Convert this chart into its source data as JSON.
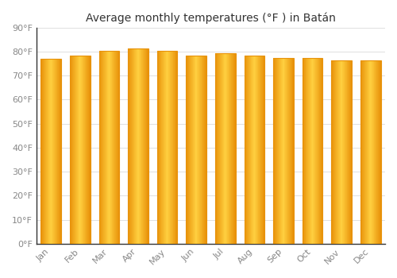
{
  "title": "Average monthly temperatures (°F ) in Batán",
  "categories": [
    "Jan",
    "Feb",
    "Mar",
    "Apr",
    "May",
    "Jun",
    "Jul",
    "Aug",
    "Sep",
    "Oct",
    "Nov",
    "Dec"
  ],
  "values": [
    77.2,
    78.3,
    80.2,
    81.3,
    80.3,
    78.4,
    79.2,
    78.3,
    77.5,
    77.4,
    76.3,
    76.3
  ],
  "bar_color_edge": "#E8920A",
  "bar_color_center": "#FFD040",
  "bar_color_mid": "#FFAE18",
  "background_color": "#FFFFFF",
  "grid_color": "#E0E0E0",
  "ylim": [
    0,
    90
  ],
  "yticks": [
    0,
    10,
    20,
    30,
    40,
    50,
    60,
    70,
    80,
    90
  ],
  "title_fontsize": 10,
  "tick_fontsize": 8,
  "tick_color": "#888888",
  "title_color": "#333333",
  "bar_width": 0.7,
  "spine_color": "#333333"
}
